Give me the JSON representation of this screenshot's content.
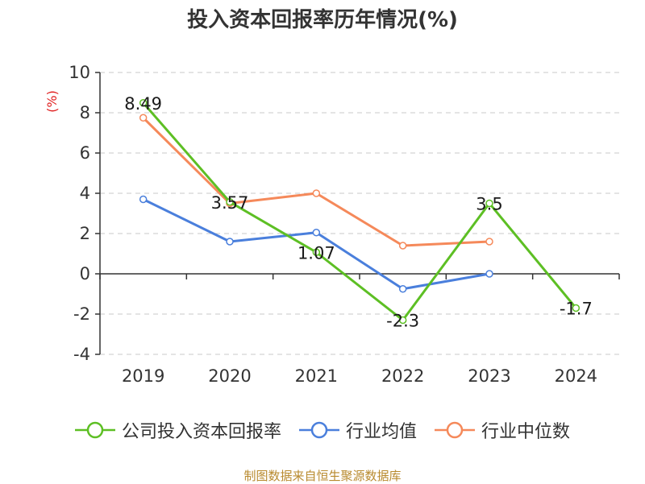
{
  "chart_data": {
    "type": "line",
    "title": "投入资本回报率历年情况(%)",
    "ylabel": "(%)",
    "xlabel": "",
    "categories": [
      "2019",
      "2020",
      "2021",
      "2022",
      "2023",
      "2024"
    ],
    "ylim": [
      -4,
      10
    ],
    "yticks": [
      -4,
      -2,
      0,
      2,
      4,
      6,
      8,
      10
    ],
    "grid": true,
    "legend_position": "bottom",
    "series": [
      {
        "name": "公司投入资本回报率",
        "color": "#5dbf24",
        "values": [
          8.49,
          3.57,
          1.07,
          -2.3,
          3.5,
          -1.7
        ],
        "labels": [
          "8.49",
          "3.57",
          "1.07",
          "-2.3",
          "3.5",
          "-1.7"
        ]
      },
      {
        "name": "行业均值",
        "color": "#4a7fdc",
        "values": [
          3.7,
          1.6,
          2.05,
          -0.75,
          0.0,
          null
        ]
      },
      {
        "name": "行业中位数",
        "color": "#f5895a",
        "values": [
          7.75,
          3.5,
          4.0,
          1.4,
          1.6,
          null
        ]
      }
    ]
  },
  "source": "制图数据来自恒生聚源数据库"
}
